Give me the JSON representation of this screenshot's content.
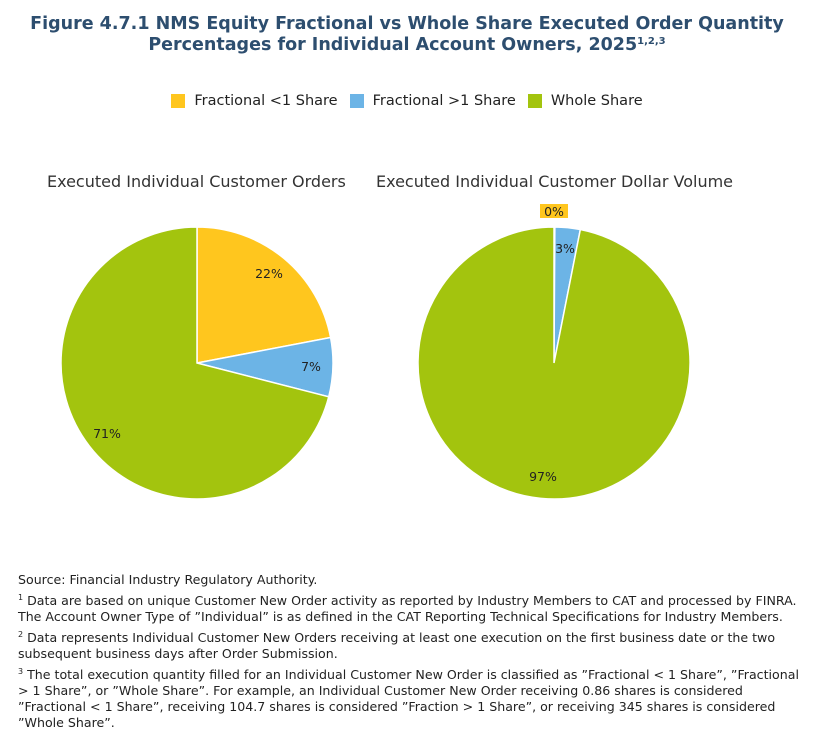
{
  "title": {
    "line1": "Figure 4.7.1 NMS Equity Fractional vs Whole Share Executed Order Quantity",
    "line2": "Percentages for Individual Account Owners, 2025",
    "superscript": "1,2,3"
  },
  "legend": [
    {
      "label": "Fractional <1 Share",
      "color": "#ffc61e",
      "icon": "square-swatch"
    },
    {
      "label": "Fractional >1 Share",
      "color": "#6cb4e6",
      "icon": "square-swatch"
    },
    {
      "label": "Whole Share",
      "color": "#a3c40e",
      "icon": "square-swatch"
    }
  ],
  "chart_data": [
    {
      "type": "pie",
      "title": "Executed Individual Customer Orders",
      "categories": [
        "Fractional <1 Share",
        "Fractional >1 Share",
        "Whole Share"
      ],
      "values": [
        22,
        7,
        71
      ],
      "labels": [
        "22%",
        "7%",
        "71%"
      ],
      "colors": [
        "#ffc61e",
        "#6cb4e6",
        "#a3c40e"
      ],
      "legend_position": "top"
    },
    {
      "type": "pie",
      "title": "Executed Individual Customer Dollar Volume",
      "categories": [
        "Fractional <1 Share",
        "Fractional >1 Share",
        "Whole Share"
      ],
      "values": [
        0.1,
        3,
        96.9
      ],
      "labels": [
        "0%",
        "3%",
        "97%"
      ],
      "colors": [
        "#ffc61e",
        "#6cb4e6",
        "#a3c40e"
      ],
      "legend_position": "top"
    }
  ],
  "notes": {
    "source": "Source: Financial Industry Regulatory Authority.",
    "footnotes": [
      {
        "mark": "1",
        "text": "Data are based on unique Customer New Order activity as reported by Industry Members to CAT and processed by FINRA. The Account Owner Type of ”Individual” is as defined in the CAT Reporting Technical Specifications for Industry Members."
      },
      {
        "mark": "2",
        "text": "Data represents Individual Customer New Orders receiving at least one execution on the first business date or the two subsequent business days after Order Submission."
      },
      {
        "mark": "3",
        "text": "The total execution quantity filled for an Individual Customer New Order is classified as ”Fractional < 1 Share”, ”Fractional > 1 Share”, or ”Whole Share”.  For example, an Individual Customer New Order receiving 0.86 shares is considered ”Fractional < 1 Share”, receiving 104.7 shares is considered ”Fraction > 1 Share”, or receiving 345 shares is considered ”Whole Share”."
      }
    ]
  }
}
